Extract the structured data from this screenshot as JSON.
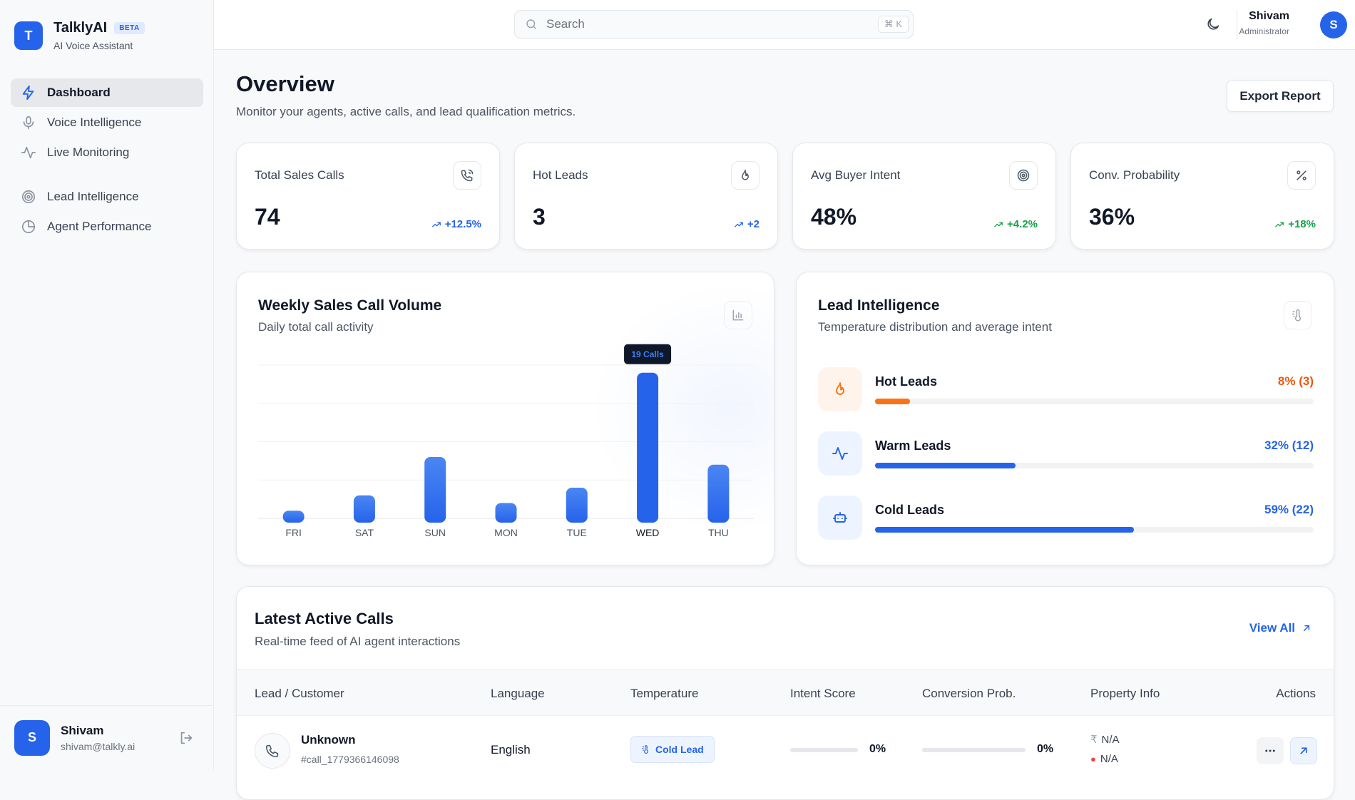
{
  "brand": {
    "name": "TalklyAI",
    "badge": "BETA",
    "subtitle": "AI Voice Assistant",
    "logo_letter": "T"
  },
  "sidebar": {
    "items": [
      {
        "label": "Dashboard",
        "icon": "bolt-icon",
        "active": true
      },
      {
        "label": "Voice Intelligence",
        "icon": "microphone-icon"
      },
      {
        "label": "Live Monitoring",
        "icon": "activity-icon"
      },
      {
        "label": "Lead Intelligence",
        "icon": "target-icon"
      },
      {
        "label": "Agent Performance",
        "icon": "pie-chart-icon"
      }
    ],
    "user": {
      "initial": "S",
      "name": "Shivam",
      "email": "shivam@talkly.ai"
    }
  },
  "topbar": {
    "search_placeholder": "Search",
    "shortcut": "⌘ K",
    "user_name": "Shivam",
    "user_role": "Administrator",
    "user_initial": "S"
  },
  "page": {
    "title": "Overview",
    "subtitle": "Monitor your agents, active calls, and lead qualification metrics.",
    "export_label": "Export Report"
  },
  "stats": [
    {
      "label": "Total Sales Calls",
      "value": "74",
      "delta": "+12.5%",
      "delta_color": "#2563eb",
      "icon": "phone-call-icon"
    },
    {
      "label": "Hot Leads",
      "value": "3",
      "delta": "+2",
      "delta_color": "#2563eb",
      "icon": "flame-icon"
    },
    {
      "label": "Avg Buyer Intent",
      "value": "48%",
      "delta": "+4.2%",
      "delta_color": "#16a34a",
      "icon": "target-icon"
    },
    {
      "label": "Conv. Probability",
      "value": "36%",
      "delta": "+18%",
      "delta_color": "#16a34a",
      "icon": "percent-icon"
    }
  ],
  "weekly": {
    "title": "Weekly Sales Call Volume",
    "subtitle": "Daily total call activity",
    "tooltip": "19 Calls"
  },
  "chart_data": {
    "type": "bar",
    "title": "Weekly Sales Call Volume",
    "subtitle": "Daily total call activity",
    "categories": [
      "FRI",
      "SAT",
      "SUN",
      "MON",
      "TUE",
      "WED",
      "THU"
    ],
    "values": [
      1,
      3,
      8,
      2,
      4,
      19,
      7
    ],
    "highlight_index": 5,
    "ylim": [
      0,
      20
    ],
    "grid": true,
    "bar_color": "#2563eb"
  },
  "lead_intel": {
    "title": "Lead Intelligence",
    "subtitle": "Temperature distribution and average intent",
    "rows": [
      {
        "name": "Hot Leads",
        "pct_label": "8% (3)",
        "fraction": 0.08,
        "color": "#f97316",
        "text_color": "#ea580c",
        "icon": "flame-icon",
        "icon_bg": "#fff4ec"
      },
      {
        "name": "Warm Leads",
        "pct_label": "32% (12)",
        "fraction": 0.32,
        "color": "#2563eb",
        "text_color": "#2563eb",
        "icon": "activity-icon",
        "icon_bg": "#eef4ff"
      },
      {
        "name": "Cold Leads",
        "pct_label": "59% (22)",
        "fraction": 0.59,
        "color": "#2563eb",
        "text_color": "#2563eb",
        "icon": "bot-icon",
        "icon_bg": "#eef4ff"
      }
    ]
  },
  "calls": {
    "title": "Latest Active Calls",
    "subtitle": "Real-time feed of AI agent interactions",
    "view_all": "View All",
    "columns": [
      "Lead / Customer",
      "Language",
      "Temperature",
      "Intent Score",
      "Conversion Prob.",
      "Property Info",
      "Actions"
    ],
    "rows": [
      {
        "name": "Unknown",
        "id": "#call_1779366146098",
        "language": "English",
        "temperature": "Cold Lead",
        "intent": "0%",
        "intent_fraction": 0,
        "conversion": "0%",
        "conversion_fraction": 0,
        "budget": "N/A",
        "location": "N/A"
      }
    ]
  }
}
